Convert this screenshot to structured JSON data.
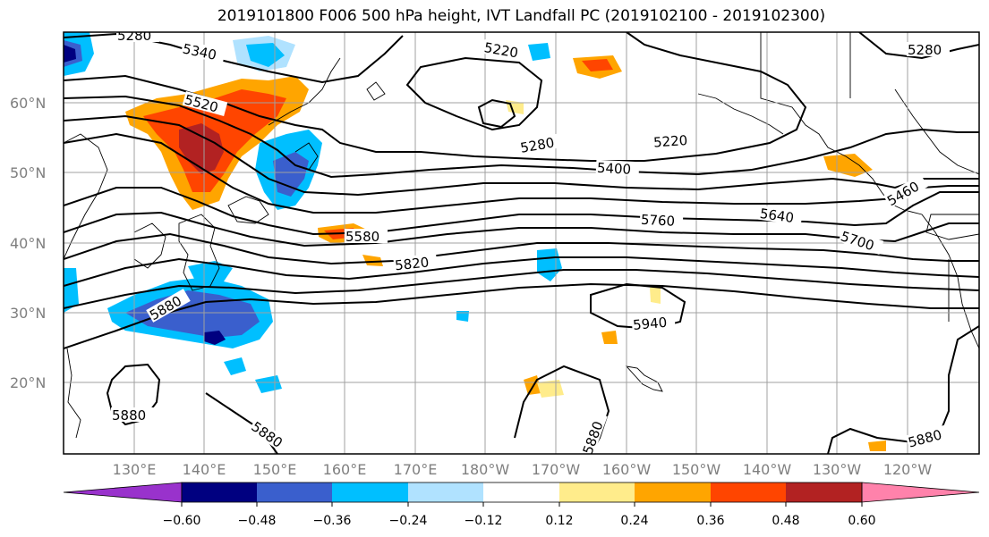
{
  "title": "2019101800 F006 500 hPa height, IVT Landfall PC (2019102100 - 2019102300)",
  "map": {
    "lat_labels": [
      "60°N",
      "50°N",
      "40°N",
      "30°N",
      "20°N"
    ],
    "lon_labels": [
      "130°E",
      "140°E",
      "150°E",
      "160°E",
      "170°E",
      "180°W",
      "170°W",
      "160°W",
      "150°W",
      "140°W",
      "130°W",
      "120°W"
    ],
    "contour_labels": [
      "5280",
      "5340",
      "5220",
      "5280",
      "5520",
      "5280",
      "5220",
      "5400",
      "5460",
      "5580",
      "5640",
      "5760",
      "5700",
      "5820",
      "5880",
      "5940",
      "5880",
      "5880",
      "5880",
      "5880"
    ]
  },
  "colorbar": {
    "ticks": [
      "−0.60",
      "−0.48",
      "−0.36",
      "−0.24",
      "−0.12",
      "0.12",
      "0.24",
      "0.36",
      "0.48",
      "0.60"
    ],
    "colors": [
      "#9932cc",
      "#000080",
      "#3a5fcd",
      "#00bfff",
      "#b0e2ff",
      "#ffffff",
      "#ffec8b",
      "#ffa500",
      "#ff4500",
      "#b22222",
      "#ff82ab"
    ]
  }
}
